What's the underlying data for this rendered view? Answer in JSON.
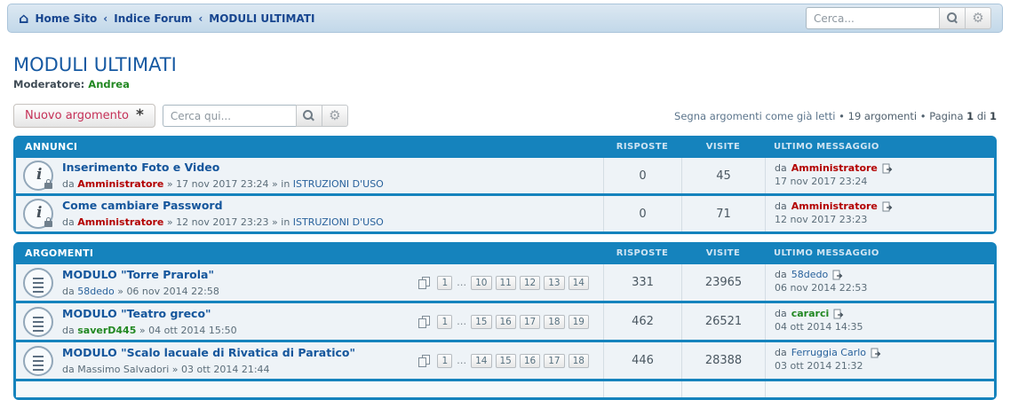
{
  "colors": {
    "section_blue": "#1583bd",
    "admin_red": "#b30000",
    "member_green": "#228822",
    "link_blue": "#15569c",
    "breadcrumb_blue": "#17458f"
  },
  "breadcrumb": {
    "home_icon": "home-icon",
    "items": [
      "Home Sito",
      "Indice Forum",
      "MODULI ULTIMATI"
    ],
    "separator": "‹"
  },
  "top_search": {
    "placeholder": "Cerca...",
    "search_icon": "magnifier-icon",
    "settings_icon": "gear-icon"
  },
  "page": {
    "title": "MODULI ULTIMATI",
    "moderator_label": "Moderatore:",
    "moderator": "Andrea"
  },
  "toolbar": {
    "new_topic_label": "Nuovo argomento",
    "new_topic_glyph": "*",
    "search_placeholder": "Cerca qui...",
    "mark_read_link": "Segna argomenti come già letti",
    "bullet1": " • ",
    "topic_count": "19 argomenti",
    "bullet2": " • ",
    "page_label": "Pagina ",
    "page_current": "1",
    "of_label": " di ",
    "page_total": "1"
  },
  "columns": {
    "replies": "RISPOSTE",
    "views": "VISITE",
    "last": "ULTIMO MESSAGGIO"
  },
  "sections": [
    {
      "title": "ANNUNCI",
      "rows": [
        {
          "icon": "announcement",
          "title": "Inserimento Foto e Video",
          "by_label": "da ",
          "author": "Amministratore",
          "author_style": "admin",
          "date_sep": " » ",
          "date": "17 nov 2017 23:24",
          "in_label": " » in ",
          "forum": "ISTRUZIONI D'USO",
          "replies": "0",
          "views": "45",
          "last": {
            "by_label": "da ",
            "author": "Amministratore",
            "author_style": "admin",
            "date": "17 nov 2017 23:24"
          }
        },
        {
          "icon": "announcement",
          "title": "Come cambiare Password",
          "by_label": "da ",
          "author": "Amministratore",
          "author_style": "admin",
          "date_sep": " » ",
          "date": "12 nov 2017 23:23",
          "in_label": " » in ",
          "forum": "ISTRUZIONI D'USO",
          "replies": "0",
          "views": "71",
          "last": {
            "by_label": "da ",
            "author": "Amministratore",
            "author_style": "admin",
            "date": "12 nov 2017 23:23"
          }
        }
      ]
    },
    {
      "title": "ARGOMENTI",
      "stub_row": true,
      "rows": [
        {
          "icon": "topic",
          "title": "MODULO \"Torre Prarola\"",
          "by_label": "da ",
          "author": "58dedo",
          "author_style": "link",
          "date_sep": " » ",
          "date": "06 nov 2014 22:58",
          "pages": [
            "1",
            "…",
            "10",
            "11",
            "12",
            "13",
            "14"
          ],
          "replies": "331",
          "views": "23965",
          "last": {
            "by_label": "da ",
            "author": "58dedo",
            "author_style": "link",
            "date": "06 nov 2014 22:53"
          }
        },
        {
          "icon": "topic",
          "title": "MODULO \"Teatro greco\"",
          "by_label": "da ",
          "author": "saverD445",
          "author_style": "green",
          "date_sep": " » ",
          "date": "04 ott 2014 15:50",
          "pages": [
            "1",
            "…",
            "15",
            "16",
            "17",
            "18",
            "19"
          ],
          "replies": "462",
          "views": "26521",
          "last": {
            "by_label": "da ",
            "author": "cararci",
            "author_style": "green",
            "date": "04 ott 2014 14:35"
          }
        },
        {
          "icon": "topic",
          "title": "MODULO \"Scalo lacuale di Rivatica di Paratico\"",
          "by_label": "da ",
          "author": "Massimo Salvadori",
          "author_style": "plain",
          "date_sep": " » ",
          "date": "03 ott 2014 21:44",
          "pages": [
            "1",
            "…",
            "14",
            "15",
            "16",
            "17",
            "18"
          ],
          "replies": "446",
          "views": "28388",
          "last": {
            "by_label": "da ",
            "author": "Ferruggia Carlo",
            "author_style": "link",
            "date": "03 ott 2014 21:32"
          }
        }
      ]
    }
  ]
}
